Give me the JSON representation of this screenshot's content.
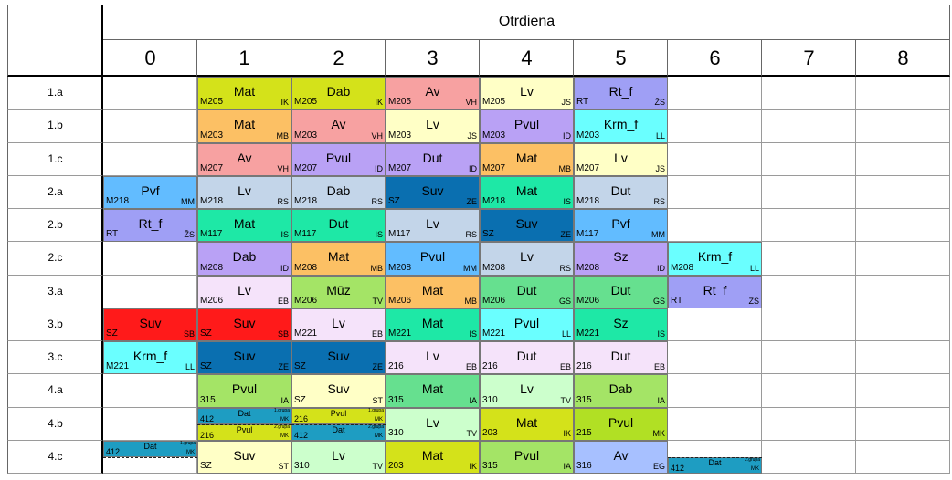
{
  "header": {
    "title": "Otrdiena",
    "columns": [
      "0",
      "1",
      "2",
      "3",
      "4",
      "5",
      "6",
      "7",
      "8"
    ]
  },
  "colors": {
    "yg": "#d4e21a",
    "salmon": "#f7a1a1",
    "ly": "#ffffc6",
    "lav": "#9f9ff5",
    "or": "#fcc064",
    "pur": "#b9a1f5",
    "cy": "#6affff",
    "bl": "#62bcff",
    "lb": "#c3d5e9",
    "dk": "#0a6fb0",
    "tl": "#1ee8a6",
    "lp": "#f5e3fa",
    "mg": "#a4e466",
    "gr": "#66e08f",
    "red": "#ff1a1a",
    "lg": "#ccffcc",
    "dat": "#1e9dc2",
    "pg": "#b1e024",
    "av": "#a7c0ff"
  },
  "rows": [
    {
      "label": "1.a",
      "cells": [
        null,
        {
          "subject": "Mat",
          "room": "M205",
          "teacher": "IK",
          "color": "yg"
        },
        {
          "subject": "Dab",
          "room": "M205",
          "teacher": "IK",
          "color": "yg"
        },
        {
          "subject": "Av",
          "room": "M205",
          "teacher": "VH",
          "color": "salmon"
        },
        {
          "subject": "Lv",
          "room": "M205",
          "teacher": "JS",
          "color": "ly"
        },
        {
          "subject": "Rt_f",
          "room": "RT",
          "teacher": "ŽS",
          "color": "lav"
        },
        null,
        null,
        null
      ]
    },
    {
      "label": "1.b",
      "cells": [
        null,
        {
          "subject": "Mat",
          "room": "M203",
          "teacher": "MB",
          "color": "or"
        },
        {
          "subject": "Av",
          "room": "M203",
          "teacher": "VH",
          "color": "salmon"
        },
        {
          "subject": "Lv",
          "room": "M203",
          "teacher": "JS",
          "color": "ly"
        },
        {
          "subject": "Pvul",
          "room": "M203",
          "teacher": "ID",
          "color": "pur"
        },
        {
          "subject": "Krm_f",
          "room": "M203",
          "teacher": "LL",
          "color": "cy"
        },
        null,
        null,
        null
      ]
    },
    {
      "label": "1.c",
      "cells": [
        null,
        {
          "subject": "Av",
          "room": "M207",
          "teacher": "VH",
          "color": "salmon"
        },
        {
          "subject": "Pvul",
          "room": "M207",
          "teacher": "ID",
          "color": "pur"
        },
        {
          "subject": "Dut",
          "room": "M207",
          "teacher": "ID",
          "color": "pur"
        },
        {
          "subject": "Mat",
          "room": "M207",
          "teacher": "MB",
          "color": "or"
        },
        {
          "subject": "Lv",
          "room": "M207",
          "teacher": "JS",
          "color": "ly"
        },
        null,
        null,
        null
      ]
    },
    {
      "label": "2.a",
      "cells": [
        {
          "subject": "Pvf",
          "room": "M218",
          "teacher": "MM",
          "color": "bl"
        },
        {
          "subject": "Lv",
          "room": "M218",
          "teacher": "RS",
          "color": "lb"
        },
        {
          "subject": "Dab",
          "room": "M218",
          "teacher": "RS",
          "color": "lb"
        },
        {
          "subject": "Suv",
          "room": "SZ",
          "teacher": "ZE",
          "color": "dk"
        },
        {
          "subject": "Mat",
          "room": "M218",
          "teacher": "IS",
          "color": "tl"
        },
        {
          "subject": "Dut",
          "room": "M218",
          "teacher": "RS",
          "color": "lb"
        },
        null,
        null,
        null
      ]
    },
    {
      "label": "2.b",
      "cells": [
        {
          "subject": "Rt_f",
          "room": "RT",
          "teacher": "ŽS",
          "color": "lav"
        },
        {
          "subject": "Mat",
          "room": "M117",
          "teacher": "IS",
          "color": "tl"
        },
        {
          "subject": "Dut",
          "room": "M117",
          "teacher": "IS",
          "color": "tl"
        },
        {
          "subject": "Lv",
          "room": "M117",
          "teacher": "RS",
          "color": "lb"
        },
        {
          "subject": "Suv",
          "room": "SZ",
          "teacher": "ZE",
          "color": "dk"
        },
        {
          "subject": "Pvf",
          "room": "M117",
          "teacher": "MM",
          "color": "bl"
        },
        null,
        null,
        null
      ]
    },
    {
      "label": "2.c",
      "cells": [
        null,
        {
          "subject": "Dab",
          "room": "M208",
          "teacher": "ID",
          "color": "pur"
        },
        {
          "subject": "Mat",
          "room": "M208",
          "teacher": "MB",
          "color": "or"
        },
        {
          "subject": "Pvul",
          "room": "M208",
          "teacher": "MM",
          "color": "bl"
        },
        {
          "subject": "Lv",
          "room": "M208",
          "teacher": "RS",
          "color": "lb"
        },
        {
          "subject": "Sz",
          "room": "M208",
          "teacher": "ID",
          "color": "pur"
        },
        {
          "subject": "Krm_f",
          "room": "M208",
          "teacher": "LL",
          "color": "cy"
        },
        null,
        null
      ]
    },
    {
      "label": "3.a",
      "cells": [
        null,
        {
          "subject": "Lv",
          "room": "M206",
          "teacher": "EB",
          "color": "lp"
        },
        {
          "subject": "Mūz",
          "room": "M206",
          "teacher": "TV",
          "color": "mg"
        },
        {
          "subject": "Mat",
          "room": "M206",
          "teacher": "MB",
          "color": "or"
        },
        {
          "subject": "Dut",
          "room": "M206",
          "teacher": "GS",
          "color": "gr"
        },
        {
          "subject": "Dut",
          "room": "M206",
          "teacher": "GS",
          "color": "gr"
        },
        {
          "subject": "Rt_f",
          "room": "RT",
          "teacher": "ŽS",
          "color": "lav"
        },
        null,
        null
      ]
    },
    {
      "label": "3.b",
      "cells": [
        {
          "subject": "Suv",
          "room": "SZ",
          "teacher": "SB",
          "color": "red"
        },
        {
          "subject": "Suv",
          "room": "SZ",
          "teacher": "SB",
          "color": "red"
        },
        {
          "subject": "Lv",
          "room": "M221",
          "teacher": "EB",
          "color": "lp"
        },
        {
          "subject": "Mat",
          "room": "M221",
          "teacher": "IS",
          "color": "tl"
        },
        {
          "subject": "Pvul",
          "room": "M221",
          "teacher": "LL",
          "color": "cy"
        },
        {
          "subject": "Sz",
          "room": "M221",
          "teacher": "IS",
          "color": "tl"
        },
        null,
        null,
        null
      ]
    },
    {
      "label": "3.c",
      "cells": [
        {
          "subject": "Krm_f",
          "room": "M221",
          "teacher": "LL",
          "color": "cy"
        },
        {
          "subject": "Suv",
          "room": "SZ",
          "teacher": "ZE",
          "color": "dk"
        },
        {
          "subject": "Suv",
          "room": "SZ",
          "teacher": "ZE",
          "color": "dk"
        },
        {
          "subject": "Lv",
          "room": "216",
          "teacher": "EB",
          "color": "lp"
        },
        {
          "subject": "Dut",
          "room": "216",
          "teacher": "EB",
          "color": "lp"
        },
        {
          "subject": "Dut",
          "room": "216",
          "teacher": "EB",
          "color": "lp"
        },
        null,
        null,
        null
      ]
    },
    {
      "label": "4.a",
      "cells": [
        null,
        {
          "subject": "Pvul",
          "room": "315",
          "teacher": "IA",
          "color": "mg"
        },
        {
          "subject": "Suv",
          "room": "SZ",
          "teacher": "ST",
          "color": "ly"
        },
        {
          "subject": "Mat",
          "room": "315",
          "teacher": "IA",
          "color": "gr"
        },
        {
          "subject": "Lv",
          "room": "310",
          "teacher": "TV",
          "color": "lg"
        },
        {
          "subject": "Dab",
          "room": "315",
          "teacher": "IA",
          "color": "mg"
        },
        null,
        null,
        null
      ]
    },
    {
      "label": "4.b",
      "cells": [
        null,
        {
          "parts": [
            {
              "subject": "Dat",
              "room": "412",
              "teacher": "MK",
              "group": "1.grupa",
              "color": "dat"
            },
            {
              "subject": "Pvul",
              "room": "216",
              "teacher": "MK",
              "group": "2.grupa",
              "color": "yg"
            }
          ]
        },
        {
          "parts": [
            {
              "subject": "Pvul",
              "room": "216",
              "teacher": "MK",
              "group": "1.grupa",
              "color": "yg"
            },
            {
              "subject": "Dat",
              "room": "412",
              "teacher": "MK",
              "group": "2.grupa",
              "color": "dat"
            }
          ]
        },
        {
          "subject": "Lv",
          "room": "310",
          "teacher": "TV",
          "color": "lg"
        },
        {
          "subject": "Mat",
          "room": "203",
          "teacher": "IK",
          "color": "yg"
        },
        {
          "subject": "Pvul",
          "room": "215",
          "teacher": "MK",
          "color": "pg"
        },
        null,
        null,
        null
      ]
    },
    {
      "label": "4.c",
      "cells": [
        {
          "parts": [
            {
              "subject": "Dat",
              "room": "412",
              "teacher": "MK",
              "group": "1.grupa",
              "color": "dat"
            },
            null
          ]
        },
        {
          "subject": "Suv",
          "room": "SZ",
          "teacher": "ST",
          "color": "ly"
        },
        {
          "subject": "Lv",
          "room": "310",
          "teacher": "TV",
          "color": "lg"
        },
        {
          "subject": "Mat",
          "room": "203",
          "teacher": "IK",
          "color": "yg"
        },
        {
          "subject": "Pvul",
          "room": "315",
          "teacher": "IA",
          "color": "mg"
        },
        {
          "subject": "Av",
          "room": "316",
          "teacher": "EG",
          "color": "av"
        },
        {
          "parts": [
            null,
            {
              "subject": "Dat",
              "room": "412",
              "teacher": "MK",
              "group": "2.grupa",
              "color": "dat"
            }
          ]
        },
        null,
        null
      ]
    }
  ]
}
